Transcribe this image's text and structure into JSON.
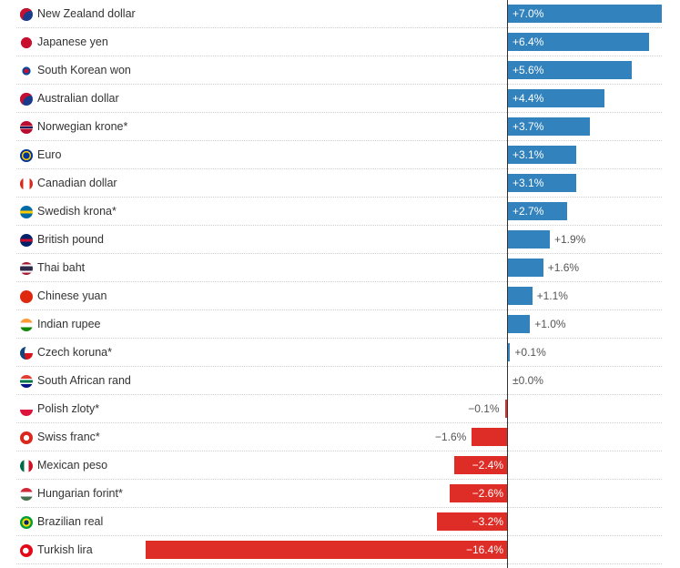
{
  "chart_data": {
    "type": "bar",
    "orientation": "horizontal",
    "title": "",
    "xlabel": "",
    "ylabel": "",
    "xlim": [
      -16.4,
      7.0
    ],
    "colors": {
      "positive": "#3182bd",
      "negative": "#de2d26",
      "axis": "#333333"
    },
    "categories": [
      "New Zealand dollar",
      "Japanese yen",
      "South Korean won",
      "Australian dollar",
      "Norwegian krone*",
      "Euro",
      "Canadian dollar",
      "Swedish krona*",
      "British pound",
      "Thai baht",
      "Chinese yuan",
      "Indian rupee",
      "Czech koruna*",
      "South African rand",
      "Polish zloty*",
      "Swiss franc*",
      "Mexican peso",
      "Hungarian forint*",
      "Brazilian real",
      "Turkish lira"
    ],
    "values": [
      7.0,
      6.4,
      5.6,
      4.4,
      3.7,
      3.1,
      3.1,
      2.7,
      1.9,
      1.6,
      1.1,
      1.0,
      0.1,
      0.0,
      -0.1,
      -1.6,
      -2.4,
      -2.6,
      -3.2,
      -16.4
    ],
    "labels": [
      "+7.0%",
      "+6.4%",
      "+5.6%",
      "+4.4%",
      "+3.7%",
      "+3.1%",
      "+3.1%",
      "+2.7%",
      "+1.9%",
      "+1.6%",
      "+1.1%",
      "+1.0%",
      "+0.1%",
      "±0.0%",
      "−0.1%",
      "−1.6%",
      "−2.4%",
      "−2.6%",
      "−3.2%",
      "−16.4%"
    ],
    "flags": [
      "nz-flag",
      "jp-flag",
      "kr-flag",
      "au-flag",
      "no-flag",
      "eu-flag",
      "ca-flag",
      "se-flag",
      "gb-flag",
      "th-flag",
      "cn-flag",
      "in-flag",
      "cz-flag",
      "za-flag",
      "pl-flag",
      "ch-flag",
      "mx-flag",
      "hu-flag",
      "br-flag",
      "tr-flag"
    ]
  }
}
